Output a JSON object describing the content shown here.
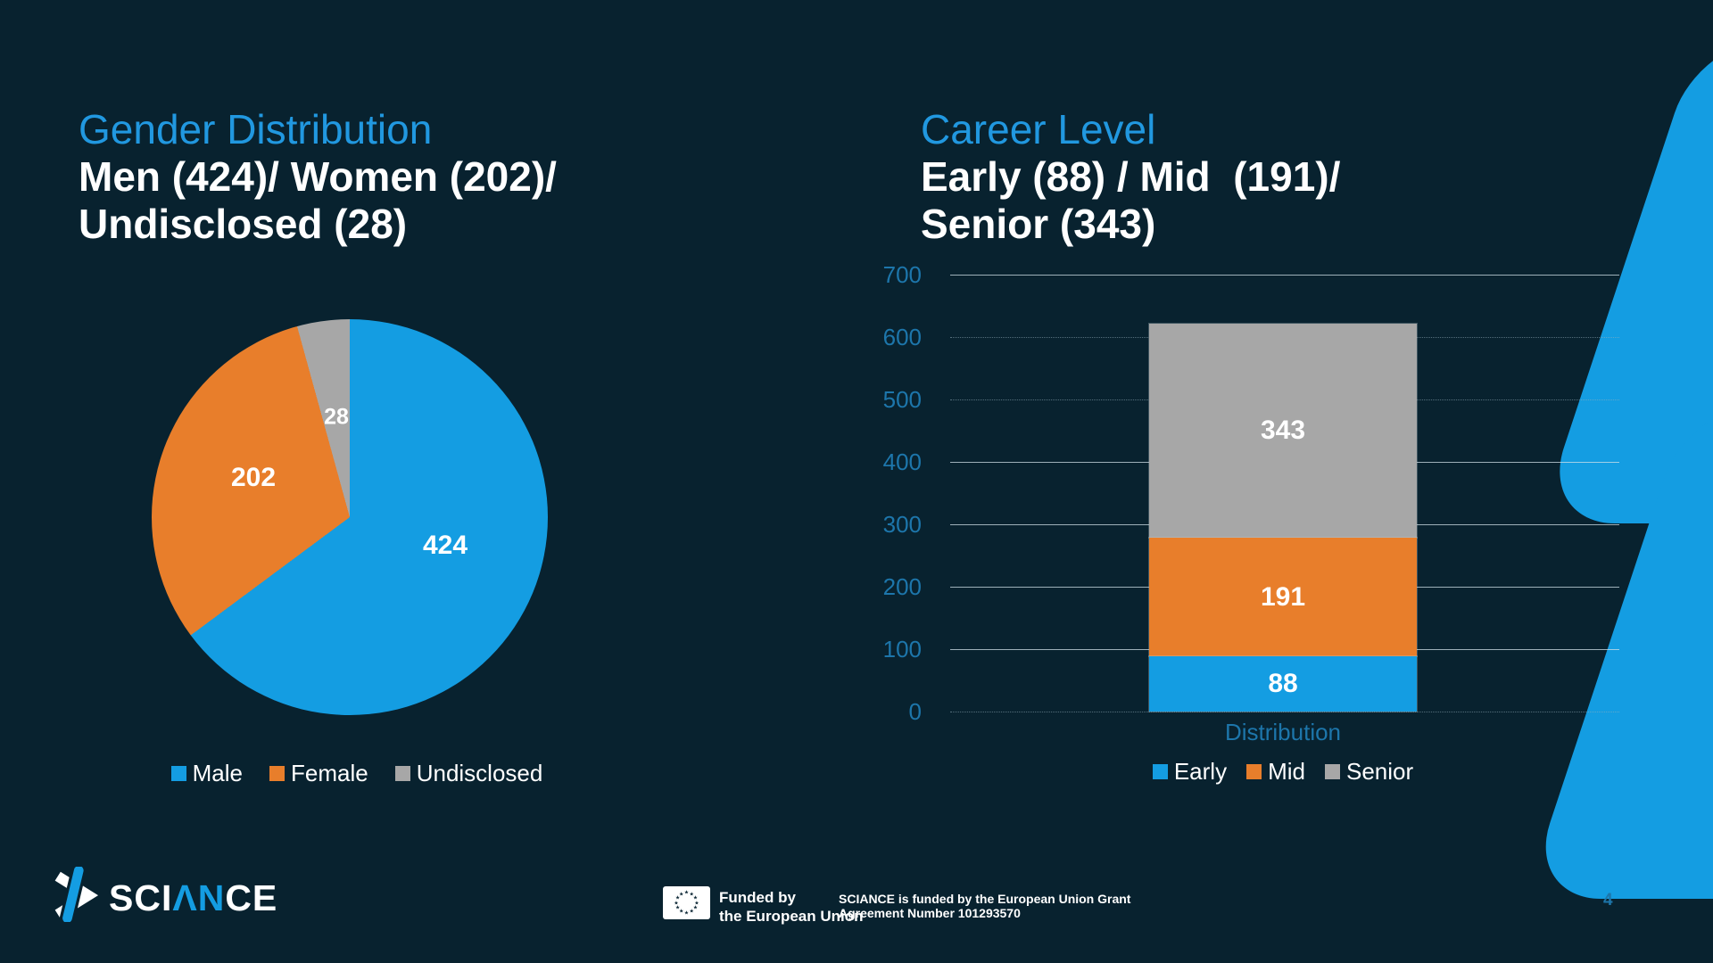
{
  "slide": {
    "background_color": "#08222f",
    "accent_color": "#149de2"
  },
  "gender_chart": {
    "title": "Gender Distribution",
    "subtitle_line1": "Men (424)/ Women (202)/",
    "subtitle_line2": "Undisclosed (28)",
    "labels_on_chart": {
      "male": "424",
      "female": "202",
      "undisclosed": "28"
    },
    "legend": [
      {
        "label": "Male",
        "color": "#149de2"
      },
      {
        "label": "Female",
        "color": "#e87e2b"
      },
      {
        "label": "Undisclosed",
        "color": "#a7a7a7"
      }
    ]
  },
  "career_chart": {
    "title": "Career Level",
    "subtitle_line1": "Early (88) / Mid  (191)/",
    "subtitle_line2": "Senior (343)",
    "x_label": "Distribution",
    "legend": [
      {
        "label": "Early",
        "color": "#149de2"
      },
      {
        "label": "Mid",
        "color": "#e87e2b"
      },
      {
        "label": "Senior",
        "color": "#a7a7a7"
      }
    ]
  },
  "chart_data": [
    {
      "type": "pie",
      "title": "Gender Distribution",
      "labels": [
        "Male",
        "Female",
        "Undisclosed"
      ],
      "values": [
        424,
        202,
        28
      ],
      "colors": [
        "#149de2",
        "#e87e2b",
        "#a7a7a7"
      ],
      "data_labels": [
        "424",
        "202",
        "28"
      ],
      "start_angle_deg": 0,
      "direction": "clockwise",
      "legend_position": "bottom"
    },
    {
      "type": "bar",
      "stacked": true,
      "categories": [
        "Distribution"
      ],
      "series": [
        {
          "name": "Early",
          "values": [
            88
          ],
          "color": "#149de2"
        },
        {
          "name": "Mid",
          "values": [
            191
          ],
          "color": "#e87e2b"
        },
        {
          "name": "Senior",
          "values": [
            343
          ],
          "color": "#a7a7a7"
        }
      ],
      "ylim": [
        0,
        700
      ],
      "yticks": [
        0,
        100,
        200,
        300,
        400,
        500,
        600,
        700
      ],
      "xlabel": "Distribution",
      "grid": true,
      "legend_position": "bottom"
    }
  ],
  "footer": {
    "logo": {
      "pre": "SCI",
      "mid": "ΛN",
      "post": "CE"
    },
    "eu_funding": {
      "line1": "Funded by",
      "line2": "the European Union"
    },
    "grant": {
      "line1": "SCIANCE is funded by the European Union Grant",
      "line2": "Agreement Number 101293570"
    },
    "page_number": "4"
  }
}
